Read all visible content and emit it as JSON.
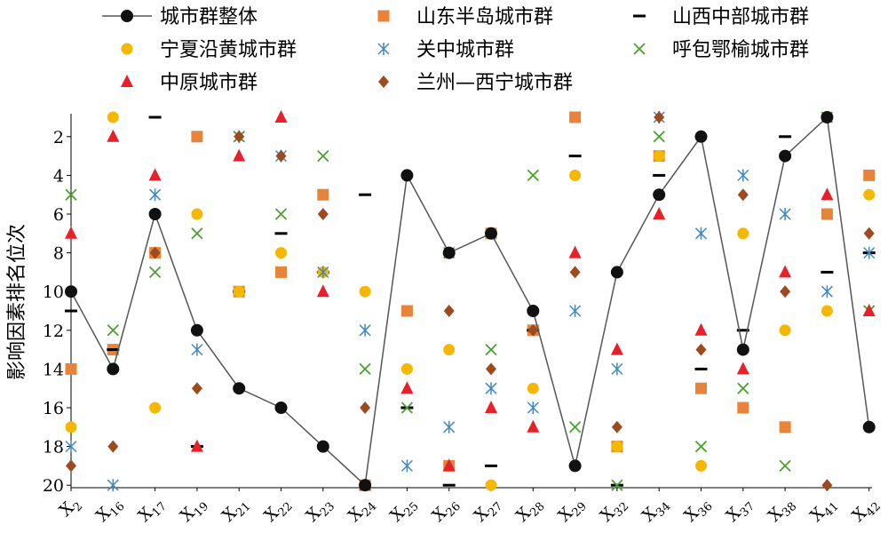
{
  "chart_data": {
    "type": "line",
    "title": "",
    "xlabel": "",
    "ylabel": "影响因素排名位次",
    "ylim": [
      20,
      1
    ],
    "y_inverted": true,
    "yticks": [
      "2",
      "4",
      "6",
      "8",
      "10",
      "12",
      "14",
      "16",
      "18",
      "20"
    ],
    "legend_placement": "top",
    "grid": false,
    "categories": [
      {
        "base": "X",
        "sub": "2"
      },
      {
        "base": "X",
        "sub": "16"
      },
      {
        "base": "X",
        "sub": "17"
      },
      {
        "base": "X",
        "sub": "19"
      },
      {
        "base": "X",
        "sub": "21"
      },
      {
        "base": "X",
        "sub": "22"
      },
      {
        "base": "X",
        "sub": "23"
      },
      {
        "base": "X",
        "sub": "24"
      },
      {
        "base": "X",
        "sub": "25"
      },
      {
        "base": "X",
        "sub": "26"
      },
      {
        "base": "X",
        "sub": "27"
      },
      {
        "base": "X",
        "sub": "28"
      },
      {
        "base": "X",
        "sub": "29"
      },
      {
        "base": "X",
        "sub": "32"
      },
      {
        "base": "X",
        "sub": "34"
      },
      {
        "base": "X",
        "sub": "36"
      },
      {
        "base": "X",
        "sub": "37"
      },
      {
        "base": "X",
        "sub": "38"
      },
      {
        "base": "X",
        "sub": "41"
      },
      {
        "base": "X",
        "sub": "42"
      }
    ],
    "series": [
      {
        "name": "城市群整体",
        "marker": "circle-line",
        "color": "#111111",
        "values": [
          10,
          14,
          6,
          12,
          15,
          16,
          18,
          20,
          4,
          8,
          7,
          11,
          19,
          9,
          5,
          2,
          13,
          3,
          1,
          17
        ]
      },
      {
        "name": "山东半岛城市群",
        "marker": "square",
        "color": "#e8843a",
        "values": [
          14,
          13,
          8,
          2,
          10,
          9,
          5,
          20,
          11,
          19,
          7,
          12,
          1,
          18,
          3,
          15,
          16,
          17,
          6,
          4
        ]
      },
      {
        "name": "山西中部城市群",
        "marker": "dash",
        "color": "#000000",
        "values": [
          11,
          13,
          1,
          18,
          10,
          7,
          9,
          5,
          16,
          20,
          19,
          12,
          3,
          20,
          4,
          14,
          12,
          2,
          9,
          8
        ]
      },
      {
        "name": "宁夏沿黄城市群",
        "marker": "circle",
        "color": "#f5b800",
        "values": [
          17,
          1,
          16,
          6,
          10,
          8,
          9,
          10,
          14,
          13,
          20,
          15,
          4,
          18,
          3,
          19,
          7,
          12,
          11,
          5
        ]
      },
      {
        "name": "关中城市群",
        "marker": "asterisk",
        "color": "#3f87c5",
        "values": [
          18,
          20,
          5,
          13,
          2,
          3,
          9,
          12,
          19,
          17,
          15,
          16,
          11,
          14,
          1,
          7,
          4,
          6,
          10,
          8
        ]
      },
      {
        "name": "呼包鄂榆城市群",
        "marker": "x",
        "color": "#4aa02c",
        "values": [
          5,
          12,
          9,
          7,
          2,
          6,
          3,
          14,
          16,
          8,
          13,
          4,
          17,
          20,
          2,
          18,
          15,
          19,
          1,
          11
        ]
      },
      {
        "name": "中原城市群",
        "marker": "triangle",
        "color": "#e8202a",
        "values": [
          7,
          2,
          4,
          18,
          3,
          1,
          10,
          20,
          15,
          19,
          16,
          17,
          8,
          13,
          6,
          12,
          14,
          9,
          5,
          11
        ]
      },
      {
        "name": "兰州—西宁城市群",
        "marker": "diamond",
        "color": "#9c4a1e",
        "values": [
          19,
          18,
          8,
          15,
          2,
          3,
          6,
          16,
          4,
          11,
          14,
          12,
          9,
          17,
          1,
          13,
          5,
          10,
          20,
          7
        ]
      }
    ]
  }
}
